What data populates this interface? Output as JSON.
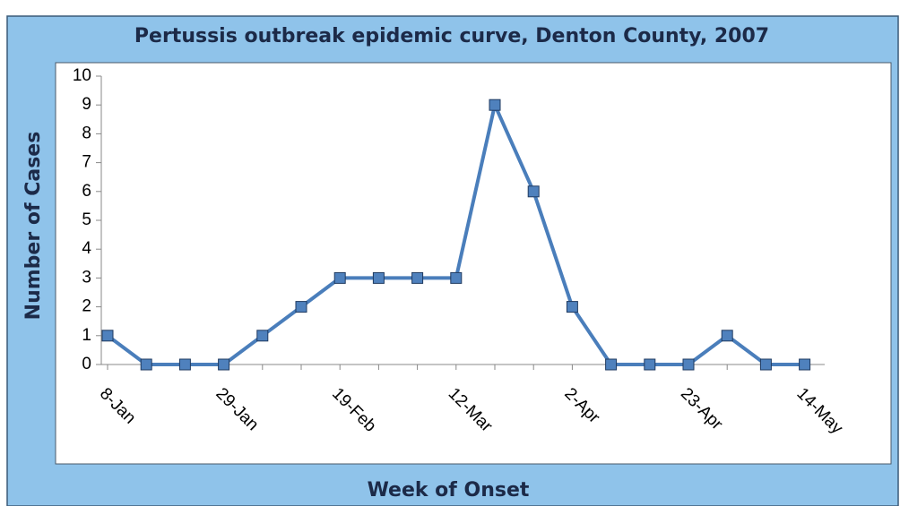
{
  "chart_data": {
    "type": "line",
    "title": "Pertussis outbreak epidemic curve, Denton County, 2007",
    "x_label": "Week of Onset",
    "y_label": "Number of Cases",
    "categories": [
      "8-Jan",
      null,
      null,
      "29-Jan",
      null,
      null,
      "19-Feb",
      null,
      null,
      "12-Mar",
      null,
      null,
      "2-Apr",
      null,
      null,
      "23-Apr",
      null,
      null,
      "14-May"
    ],
    "series": [
      {
        "name": "Cases",
        "color": "#4a7ebb",
        "values": [
          1,
          0,
          0,
          0,
          1,
          2,
          3,
          3,
          3,
          3,
          9,
          6,
          2,
          0,
          0,
          0,
          1,
          0,
          0
        ]
      }
    ],
    "ylim": [
      0,
      10
    ],
    "yticks": [
      0,
      1,
      2,
      3,
      4,
      5,
      6,
      7,
      8,
      9,
      10
    ],
    "grid": false
  }
}
